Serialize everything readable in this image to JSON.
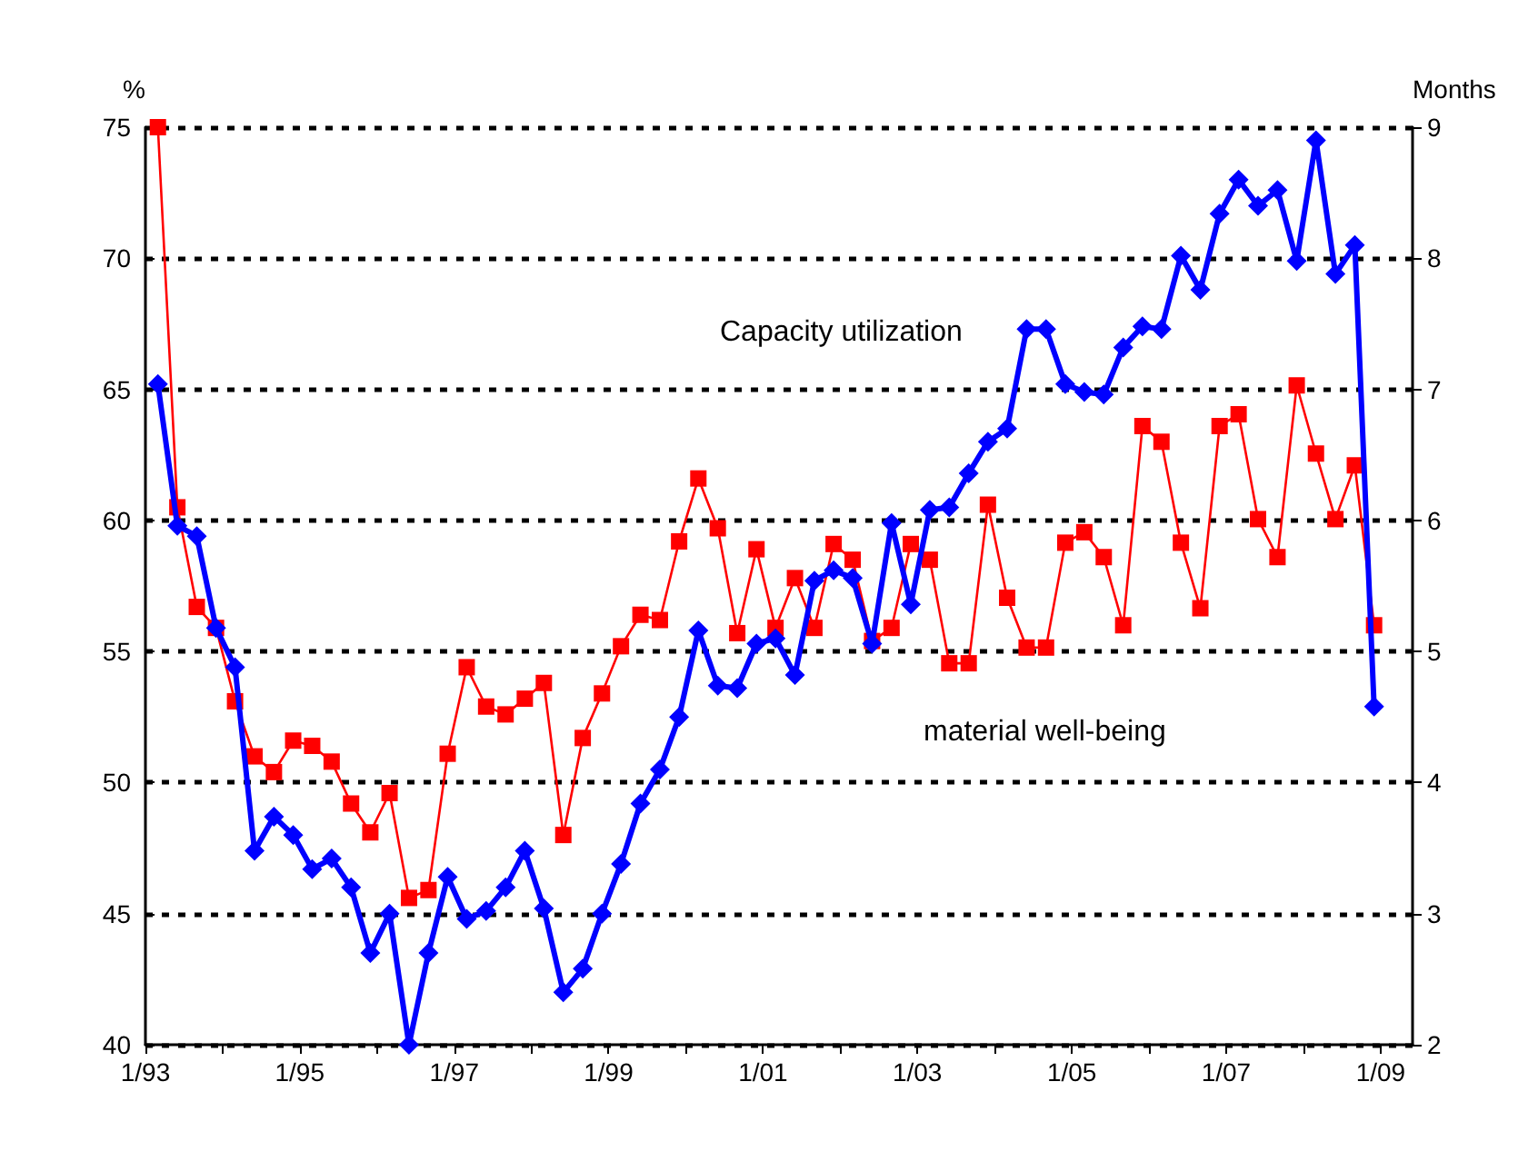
{
  "chart_data": {
    "type": "line",
    "ylabel": "%",
    "y2label": "Months",
    "x": [
      "1993-03",
      "1993-06",
      "1993-09",
      "1993-12",
      "1994-03",
      "1994-06",
      "1994-09",
      "1994-12",
      "1995-03",
      "1995-06",
      "1995-09",
      "1995-12",
      "1996-03",
      "1996-06",
      "1996-09",
      "1996-12",
      "1997-03",
      "1997-06",
      "1997-09",
      "1997-12",
      "1998-03",
      "1998-06",
      "1998-09",
      "1998-12",
      "1999-03",
      "1999-06",
      "1999-09",
      "1999-12",
      "2000-03",
      "2000-06",
      "2000-09",
      "2000-12",
      "2001-03",
      "2001-06",
      "2001-09",
      "2001-12",
      "2002-03",
      "2002-06",
      "2002-09",
      "2002-12",
      "2003-03",
      "2003-06",
      "2003-09",
      "2003-12",
      "2004-03",
      "2004-06",
      "2004-09",
      "2004-12",
      "2005-03",
      "2005-06",
      "2005-09",
      "2005-12",
      "2006-03",
      "2006-06",
      "2006-09",
      "2006-12",
      "2007-03",
      "2007-06",
      "2007-09",
      "2007-12",
      "2008-03",
      "2008-06",
      "2008-09",
      "2008-12"
    ],
    "series": [
      {
        "name": "Capacity utilization",
        "color": "#0000ff",
        "marker": "diamond",
        "values": [
          65.2,
          59.8,
          59.4,
          55.9,
          54.4,
          47.4,
          48.7,
          48.0,
          46.7,
          47.1,
          46.0,
          43.5,
          45.0,
          40.0,
          43.5,
          46.4,
          44.8,
          45.1,
          46.0,
          47.4,
          45.2,
          42.0,
          42.9,
          45.0,
          46.9,
          49.2,
          50.5,
          52.5,
          55.8,
          53.7,
          53.6,
          55.3,
          55.5,
          54.1,
          57.7,
          58.1,
          57.8,
          55.3,
          59.9,
          56.8,
          60.4,
          60.5,
          61.8,
          63.0,
          63.5,
          67.3,
          67.3,
          65.2,
          64.9,
          64.8,
          66.6,
          67.4,
          67.3,
          70.1,
          68.8,
          71.7,
          73.0,
          72.0,
          72.6,
          69.9,
          74.5,
          69.4,
          70.5,
          52.9
        ]
      },
      {
        "name": "material well-being",
        "color": "#ff0000",
        "marker": "square",
        "axis": "y2",
        "values": [
          9.0,
          6.1,
          5.34,
          5.18,
          4.62,
          4.2,
          4.08,
          4.32,
          4.28,
          4.16,
          3.84,
          3.62,
          3.92,
          3.12,
          3.18,
          4.22,
          4.88,
          4.58,
          4.52,
          4.64,
          4.76,
          3.6,
          4.34,
          4.68,
          5.04,
          5.28,
          5.24,
          5.84,
          6.32,
          5.94,
          5.14,
          5.78,
          5.18,
          5.56,
          5.18,
          5.82,
          5.7,
          5.08,
          5.18,
          5.82,
          5.7,
          4.91,
          4.91,
          6.12,
          5.41,
          5.03,
          5.03,
          5.83,
          5.91,
          5.72,
          5.2,
          6.72,
          6.6,
          5.83,
          5.33,
          6.72,
          6.81,
          6.01,
          5.72,
          7.03,
          6.51,
          6.01,
          6.42,
          5.2
        ]
      }
    ],
    "xlim": [
      "1993-01",
      "2009-06"
    ],
    "xticks": [
      {
        "value": "1993-01",
        "label": "1/93"
      },
      {
        "value": "1994-01",
        "label": null
      },
      {
        "value": "1995-01",
        "label": "1/95"
      },
      {
        "value": "1996-01",
        "label": null
      },
      {
        "value": "1997-01",
        "label": "1/97"
      },
      {
        "value": "1998-01",
        "label": null
      },
      {
        "value": "1999-01",
        "label": "1/99"
      },
      {
        "value": "2000-01",
        "label": null
      },
      {
        "value": "2001-01",
        "label": "1/01"
      },
      {
        "value": "2002-01",
        "label": null
      },
      {
        "value": "2003-01",
        "label": "1/03"
      },
      {
        "value": "2004-01",
        "label": null
      },
      {
        "value": "2005-01",
        "label": "1/05"
      },
      {
        "value": "2006-01",
        "label": null
      },
      {
        "value": "2007-01",
        "label": "1/07"
      },
      {
        "value": "2008-01",
        "label": null
      },
      {
        "value": "2009-01",
        "label": "1/09"
      }
    ],
    "ylim": [
      40,
      75
    ],
    "yticks": [
      40,
      45,
      50,
      55,
      60,
      65,
      70,
      75
    ],
    "y2lim": [
      2,
      9
    ],
    "y2ticks": [
      2,
      3,
      4,
      5,
      6,
      7,
      8,
      9
    ],
    "grid": "y",
    "legend": false,
    "line_style": "solid"
  }
}
